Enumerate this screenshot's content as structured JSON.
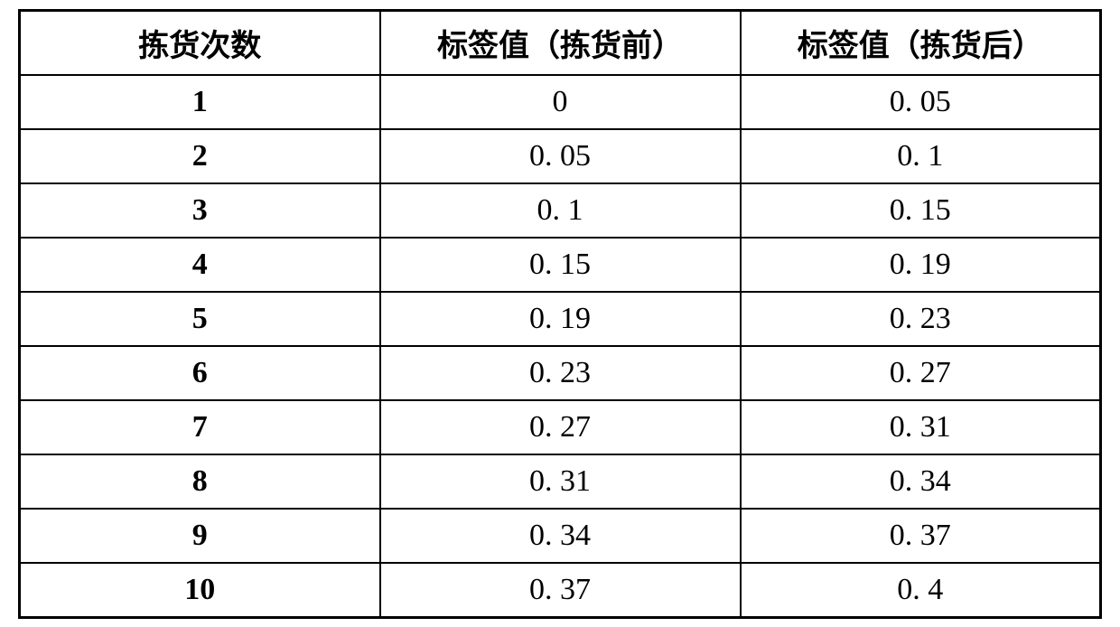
{
  "table": {
    "columns": [
      "拣货次数",
      "标签值（拣货前）",
      "标签值（拣货后）"
    ],
    "rows": [
      [
        "1",
        "0",
        "0. 05"
      ],
      [
        "2",
        "0. 05",
        "0. 1"
      ],
      [
        "3",
        "0. 1",
        "0. 15"
      ],
      [
        "4",
        "0. 15",
        "0. 19"
      ],
      [
        "5",
        "0. 19",
        "0. 23"
      ],
      [
        "6",
        "0. 23",
        "0. 27"
      ],
      [
        "7",
        "0. 27",
        "0. 31"
      ],
      [
        "8",
        "0. 31",
        "0. 34"
      ],
      [
        "9",
        "0. 34",
        "0. 37"
      ],
      [
        "10",
        "0. 37",
        "0. 4"
      ]
    ],
    "border_color": "#000000",
    "background_color": "#ffffff",
    "text_color": "#000000",
    "header_fontsize": 34,
    "cell_fontsize": 34,
    "column_widths": [
      "33.333%",
      "33.333%",
      "33.333%"
    ],
    "text_align": "center"
  }
}
